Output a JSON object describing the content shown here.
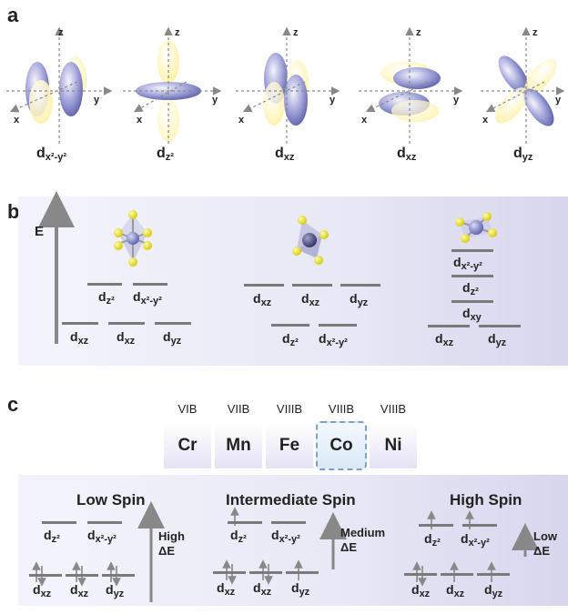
{
  "panels": {
    "a": "a",
    "b": "b",
    "c": "c"
  },
  "axes": {
    "x": "x",
    "y": "y",
    "z": "z"
  },
  "panel_a": {
    "orbitals": [
      {
        "main": "d",
        "sub": "x²-y²"
      },
      {
        "main": "d",
        "sub": "z²"
      },
      {
        "main": "d",
        "sub": "xz"
      },
      {
        "main": "d",
        "sub": "xz"
      },
      {
        "main": "d",
        "sub": "yz"
      }
    ]
  },
  "panel_b": {
    "energy_label": "E",
    "octahedral": {
      "upper": [
        {
          "m": "d",
          "s": "z²"
        },
        {
          "m": "d",
          "s": "x²-y²"
        }
      ],
      "lower": [
        {
          "m": "d",
          "s": "xz"
        },
        {
          "m": "d",
          "s": "xz"
        },
        {
          "m": "d",
          "s": "yz"
        }
      ]
    },
    "tetrahedral": {
      "upper": [
        {
          "m": "d",
          "s": "xz"
        },
        {
          "m": "d",
          "s": "xz"
        },
        {
          "m": "d",
          "s": "yz"
        }
      ],
      "lower": [
        {
          "m": "d",
          "s": "z²"
        },
        {
          "m": "d",
          "s": "x²-y²"
        }
      ]
    },
    "square_planar": {
      "levels": [
        {
          "m": "d",
          "s": "x²-y²"
        },
        {
          "m": "d",
          "s": "z²"
        },
        {
          "m": "d",
          "s": "xy"
        }
      ],
      "lower": [
        {
          "m": "d",
          "s": "xz"
        },
        {
          "m": "d",
          "s": "yz"
        }
      ]
    }
  },
  "panel_c": {
    "elements": [
      {
        "group": "VIB",
        "symbol": "Cr"
      },
      {
        "group": "VIIB",
        "symbol": "Mn"
      },
      {
        "group": "VIIIB",
        "symbol": "Fe"
      },
      {
        "group": "VIIIB",
        "symbol": "Co"
      },
      {
        "group": "VIIIB",
        "symbol": "Ni"
      }
    ],
    "spin_states": [
      {
        "title": "Low Spin",
        "delta_line1": "High",
        "delta_line2": "ΔE"
      },
      {
        "title": "Intermediate Spin",
        "delta_line1": "Medium",
        "delta_line2": "ΔE"
      },
      {
        "title": "High Spin",
        "delta_line1": "Low",
        "delta_line2": "ΔE"
      }
    ],
    "eg": [
      {
        "m": "d",
        "s": "z²"
      },
      {
        "m": "d",
        "s": "x²-y²"
      }
    ],
    "t2g": [
      {
        "m": "d",
        "s": "xz"
      },
      {
        "m": "d",
        "s": "xz"
      },
      {
        "m": "d",
        "s": "yz"
      }
    ]
  },
  "colors": {
    "lobe_blue": "#7b7fc4",
    "lobe_yellow": "#fff2a8",
    "atom_yellow": "#e0d400",
    "arrow_gray": "#888888"
  }
}
